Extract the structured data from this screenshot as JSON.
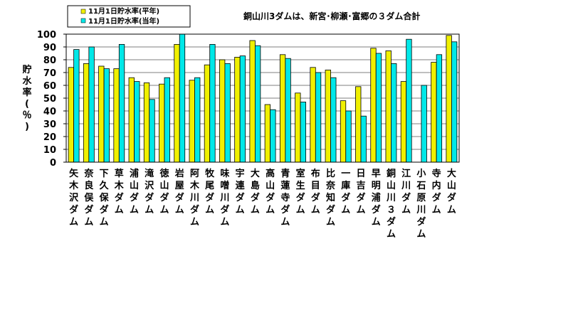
{
  "chart_data": {
    "type": "bar",
    "title": "銅山川3ダムは、新宮･柳瀬･富郷の３ダム合計",
    "ylabel": "貯水率(％)",
    "xlabel": "",
    "ylim": [
      0,
      100
    ],
    "yticks": [
      0,
      10,
      20,
      30,
      40,
      50,
      60,
      70,
      80,
      90,
      100
    ],
    "grid": true,
    "legend_position": "top-left",
    "categories": [
      "矢木沢ダム",
      "奈良俣ダム",
      "下久保ダム",
      "草木ダム",
      "浦山ダム",
      "滝沢ダム",
      "徳山ダム",
      "岩屋ダム",
      "阿木川ダム",
      "牧尾ダム",
      "味噌川ダム",
      "宇連ダム",
      "大島ダム",
      "高山ダム",
      "青蓮寺ダム",
      "室生ダム",
      "布目ダム",
      "比奈知ダム",
      "一庫ダム",
      "日吉ダム",
      "早明浦ダム",
      "銅山川３ダム",
      "江川ダム",
      "小石原川ダム",
      "寺内ダム",
      "大山ダム"
    ],
    "series": [
      {
        "name": "11月1日貯水率(平年)",
        "color": "#f0f000",
        "values": [
          74,
          77,
          75,
          73,
          66,
          62,
          61,
          92,
          64,
          76,
          80,
          82,
          95,
          45,
          84,
          54,
          74,
          72,
          48,
          59,
          89,
          87,
          63,
          null,
          78,
          99
        ]
      },
      {
        "name": "11月1日貯水率(当年)",
        "color": "#00e8e8",
        "values": [
          88,
          90,
          73,
          92,
          63,
          49,
          66,
          100,
          66,
          92,
          77,
          83,
          91,
          41,
          81,
          47,
          70,
          66,
          40,
          36,
          85,
          77,
          96,
          60,
          84,
          94
        ]
      }
    ]
  }
}
